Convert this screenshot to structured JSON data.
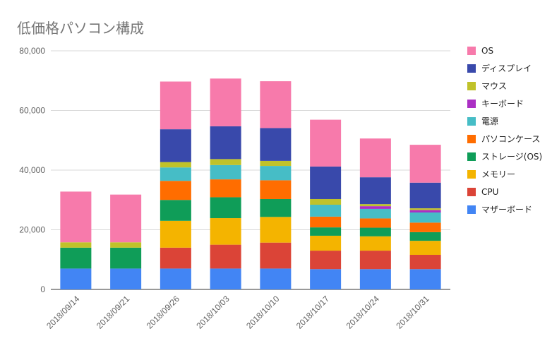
{
  "chart_data": {
    "type": "bar",
    "stacked": true,
    "title": "低価格パソコン構成",
    "xlabel": "",
    "ylabel": "",
    "ylim": [
      0,
      80000
    ],
    "yticks": [
      0,
      20000,
      40000,
      60000,
      80000
    ],
    "ytick_labels": [
      "0",
      "20,000",
      "40,000",
      "60,000",
      "80,000"
    ],
    "grid": true,
    "legend_position": "right",
    "categories": [
      "2018/09/14",
      "2018/09/21",
      "2018/09/26",
      "2018/10/03",
      "2018/10/10",
      "2018/10/17",
      "2018/10/24",
      "2018/10/31"
    ],
    "series": [
      {
        "name": "マザーボード",
        "color": "#4285F4",
        "values": [
          7000,
          7000,
          7000,
          7000,
          7000,
          6800,
          6800,
          6800
        ]
      },
      {
        "name": "CPU",
        "color": "#DB4437",
        "values": [
          0,
          0,
          7000,
          8000,
          8700,
          6200,
          6200,
          4800
        ]
      },
      {
        "name": "メモリー",
        "color": "#F4B400",
        "values": [
          0,
          0,
          9000,
          8900,
          8600,
          5000,
          4800,
          4700
        ]
      },
      {
        "name": "ストレージ(OS)",
        "color": "#0F9D58",
        "values": [
          7000,
          7000,
          7000,
          7000,
          6000,
          2800,
          2900,
          2900
        ]
      },
      {
        "name": "パソコンケース",
        "color": "#FF6D00",
        "values": [
          0,
          0,
          6400,
          6000,
          6300,
          3600,
          3100,
          3200
        ]
      },
      {
        "name": "電源",
        "color": "#46BDC6",
        "values": [
          0,
          0,
          4500,
          4800,
          4800,
          4000,
          3200,
          3400
        ]
      },
      {
        "name": "キーボード",
        "color": "#AB30C4",
        "values": [
          0,
          0,
          0,
          0,
          0,
          0,
          900,
          800
        ]
      },
      {
        "name": "マウス",
        "color": "#C0C22A",
        "values": [
          1800,
          1800,
          1800,
          2000,
          1700,
          1900,
          700,
          600
        ]
      },
      {
        "name": "ディスプレイ",
        "color": "#3949AB",
        "values": [
          0,
          0,
          11000,
          11000,
          11000,
          10900,
          9000,
          8600
        ]
      },
      {
        "name": "OS",
        "color": "#F77AAB",
        "values": [
          17000,
          16000,
          16000,
          16000,
          15700,
          15700,
          13000,
          12700
        ]
      }
    ]
  }
}
